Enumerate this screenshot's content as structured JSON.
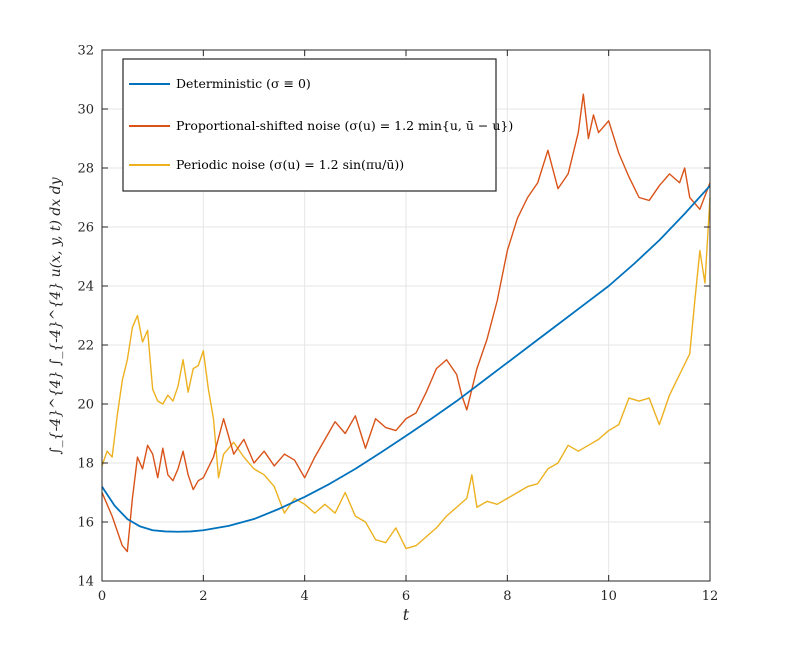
{
  "chart_data": {
    "type": "line",
    "title": "",
    "xlabel": "t",
    "ylabel": "∫_{-4}^{4} ∫_{-4}^{4} u(x, y, t) dx dy",
    "xlim": [
      0,
      12
    ],
    "ylim": [
      14,
      32
    ],
    "xticks": [
      0,
      2,
      4,
      6,
      8,
      10,
      12
    ],
    "yticks": [
      14,
      16,
      18,
      20,
      22,
      24,
      26,
      28,
      30,
      32
    ],
    "grid": true,
    "legend_position": "top-left",
    "series": [
      {
        "name": "Deterministic (σ ≡ 0)",
        "color": "#0072BD",
        "x": [
          0,
          0.25,
          0.5,
          0.75,
          1.0,
          1.25,
          1.5,
          1.75,
          2.0,
          2.5,
          3.0,
          3.5,
          4.0,
          4.5,
          5.0,
          5.5,
          6.0,
          6.5,
          7.0,
          7.5,
          8.0,
          8.5,
          9.0,
          9.5,
          10.0,
          10.5,
          11.0,
          11.5,
          12.0
        ],
        "values": [
          17.2,
          16.55,
          16.1,
          15.85,
          15.72,
          15.68,
          15.67,
          15.68,
          15.72,
          15.87,
          16.1,
          16.45,
          16.85,
          17.3,
          17.8,
          18.35,
          18.92,
          19.5,
          20.1,
          20.75,
          21.4,
          22.05,
          22.7,
          23.35,
          24.0,
          24.75,
          25.55,
          26.45,
          27.4
        ]
      },
      {
        "name": "Proportional-shifted noise (σ(u) = 1.2 min{u, ū − u})",
        "color": "#D95319",
        "x": [
          0,
          0.1,
          0.2,
          0.3,
          0.4,
          0.5,
          0.6,
          0.7,
          0.8,
          0.9,
          1.0,
          1.1,
          1.2,
          1.3,
          1.4,
          1.5,
          1.6,
          1.7,
          1.8,
          1.9,
          2.0,
          2.2,
          2.4,
          2.6,
          2.8,
          3.0,
          3.2,
          3.4,
          3.6,
          3.8,
          4.0,
          4.2,
          4.4,
          4.6,
          4.8,
          5.0,
          5.2,
          5.4,
          5.6,
          5.8,
          6.0,
          6.2,
          6.4,
          6.6,
          6.8,
          7.0,
          7.1,
          7.2,
          7.4,
          7.6,
          7.8,
          8.0,
          8.2,
          8.4,
          8.6,
          8.8,
          9.0,
          9.2,
          9.4,
          9.5,
          9.6,
          9.7,
          9.8,
          10.0,
          10.2,
          10.4,
          10.6,
          10.8,
          11.0,
          11.2,
          11.4,
          11.5,
          11.6,
          11.8,
          12.0
        ],
        "values": [
          17.0,
          16.6,
          16.2,
          15.7,
          15.2,
          15.0,
          16.8,
          18.2,
          17.8,
          18.6,
          18.3,
          17.5,
          18.5,
          17.6,
          17.4,
          17.8,
          18.4,
          17.6,
          17.1,
          17.4,
          17.5,
          18.2,
          19.5,
          18.3,
          18.8,
          18.0,
          18.4,
          17.9,
          18.3,
          18.1,
          17.5,
          18.2,
          18.8,
          19.4,
          19.0,
          19.6,
          18.5,
          19.5,
          19.2,
          19.1,
          19.5,
          19.7,
          20.4,
          21.2,
          21.5,
          21.0,
          20.3,
          19.8,
          21.2,
          22.2,
          23.5,
          25.2,
          26.3,
          27.0,
          27.5,
          28.6,
          27.3,
          27.8,
          29.2,
          30.5,
          29.0,
          29.8,
          29.2,
          29.6,
          28.5,
          27.7,
          27.0,
          26.9,
          27.4,
          27.8,
          27.5,
          28.0,
          27.0,
          26.6,
          27.5
        ]
      },
      {
        "name": "Periodic noise (σ(u) = 1.2 sin(πu/ū))",
        "color": "#EDB120",
        "x": [
          0,
          0.1,
          0.2,
          0.3,
          0.4,
          0.5,
          0.6,
          0.7,
          0.8,
          0.9,
          1.0,
          1.1,
          1.2,
          1.3,
          1.4,
          1.5,
          1.6,
          1.7,
          1.8,
          1.9,
          2.0,
          2.1,
          2.2,
          2.3,
          2.4,
          2.6,
          2.8,
          3.0,
          3.2,
          3.4,
          3.6,
          3.8,
          4.0,
          4.2,
          4.4,
          4.6,
          4.8,
          5.0,
          5.2,
          5.4,
          5.6,
          5.8,
          6.0,
          6.2,
          6.4,
          6.6,
          6.8,
          7.0,
          7.2,
          7.3,
          7.4,
          7.6,
          7.8,
          8.0,
          8.2,
          8.4,
          8.6,
          8.8,
          9.0,
          9.2,
          9.4,
          9.6,
          9.8,
          10.0,
          10.2,
          10.4,
          10.6,
          10.8,
          11.0,
          11.2,
          11.4,
          11.6,
          11.7,
          11.8,
          11.9,
          12.0
        ],
        "values": [
          17.9,
          18.4,
          18.2,
          19.6,
          20.8,
          21.5,
          22.6,
          23.0,
          22.1,
          22.5,
          20.5,
          20.1,
          20.0,
          20.3,
          20.1,
          20.6,
          21.5,
          20.4,
          21.2,
          21.3,
          21.8,
          20.5,
          19.5,
          17.5,
          18.3,
          18.7,
          18.2,
          17.8,
          17.6,
          17.2,
          16.3,
          16.8,
          16.6,
          16.3,
          16.6,
          16.3,
          17.0,
          16.2,
          16.0,
          15.4,
          15.3,
          15.8,
          15.1,
          15.2,
          15.5,
          15.8,
          16.2,
          16.5,
          16.8,
          17.6,
          16.5,
          16.7,
          16.6,
          16.8,
          17.0,
          17.2,
          17.3,
          17.8,
          18.0,
          18.6,
          18.4,
          18.6,
          18.8,
          19.1,
          19.3,
          20.2,
          20.1,
          20.2,
          19.3,
          20.3,
          21.0,
          21.7,
          23.5,
          25.2,
          24.1,
          27.0
        ]
      }
    ]
  }
}
